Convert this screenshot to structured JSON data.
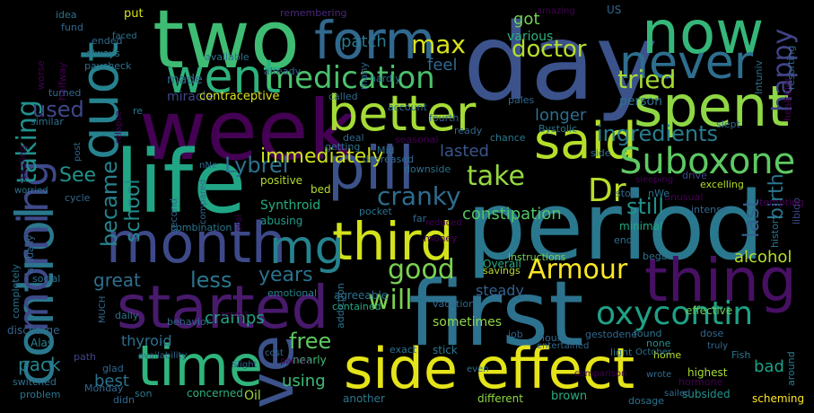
{
  "words": [
    {
      "text": "day",
      "color": "#3b528b"
    },
    {
      "text": "period",
      "color": "#2a788e"
    },
    {
      "text": "week",
      "color": "#440154"
    },
    {
      "text": "first",
      "color": "#2c728e"
    },
    {
      "text": "two",
      "color": "#3fbc73"
    },
    {
      "text": "life",
      "color": "#21a685"
    },
    {
      "text": "side effect",
      "color": "#e5e419"
    },
    {
      "text": "time",
      "color": "#2fb47c"
    },
    {
      "text": "pill",
      "color": "#3b528b"
    },
    {
      "text": "said",
      "color": "#b5de2b"
    },
    {
      "text": "spent",
      "color": "#8fd744"
    },
    {
      "text": "now",
      "color": "#35b779"
    },
    {
      "text": "form",
      "color": "#31688e"
    },
    {
      "text": "thing",
      "color": "#471063"
    },
    {
      "text": "month",
      "color": "#3e4989"
    },
    {
      "text": "started",
      "color": "#481a6c"
    },
    {
      "text": "third",
      "color": "#d2e21b"
    },
    {
      "text": "better",
      "color": "#a5db36"
    },
    {
      "text": "went",
      "color": "#2db27d"
    },
    {
      "text": "quot",
      "color": "#26828e"
    },
    {
      "text": "control",
      "color": "#2a788e"
    },
    {
      "text": "morning",
      "color": "#3e4989"
    },
    {
      "text": "ve",
      "color": "#3b528b"
    },
    {
      "text": "mg",
      "color": "#26828e"
    },
    {
      "text": "never",
      "color": "#2e6e8e"
    },
    {
      "text": "Suboxone",
      "color": "#5ec962"
    },
    {
      "text": "medication",
      "color": "#4ac16d"
    },
    {
      "text": "oxycontin",
      "color": "#1fa187"
    },
    {
      "text": "Armour",
      "color": "#fde725"
    },
    {
      "text": "Dr",
      "color": "#b8de29"
    },
    {
      "text": "good",
      "color": "#7ad151"
    },
    {
      "text": "cranky",
      "color": "#2f6c8e"
    },
    {
      "text": "take",
      "color": "#95d840"
    },
    {
      "text": "tried",
      "color": "#a8db34"
    },
    {
      "text": "doctor",
      "color": "#b5de2b"
    },
    {
      "text": "max",
      "color": "#d8e219"
    },
    {
      "text": "happy",
      "color": "#414487"
    },
    {
      "text": "taking",
      "color": "#21918c"
    },
    {
      "text": "used",
      "color": "#3f4788"
    },
    {
      "text": "See",
      "color": "#20928c"
    },
    {
      "text": "became",
      "color": "#26828e"
    },
    {
      "text": "school",
      "color": "#228c8d"
    },
    {
      "text": "Lybrel",
      "color": "#2c728e"
    },
    {
      "text": "immediately",
      "color": "#d0e11c"
    },
    {
      "text": "ingredients",
      "color": "#287c8e"
    },
    {
      "text": "still",
      "color": "#20928c"
    },
    {
      "text": "lasted",
      "color": "#39558c"
    },
    {
      "text": "constipation",
      "color": "#54c568"
    },
    {
      "text": "last",
      "color": "#34618d"
    },
    {
      "text": "birth",
      "color": "#2a768e"
    },
    {
      "text": "alcohol",
      "color": "#b5de2b"
    },
    {
      "text": "will",
      "color": "#7ad151"
    },
    {
      "text": "free",
      "color": "#5ec962"
    },
    {
      "text": "less",
      "color": "#2a768e"
    },
    {
      "text": "great",
      "color": "#2e6f8e"
    },
    {
      "text": "years",
      "color": "#2c728e"
    },
    {
      "text": "cramps",
      "color": "#20a386"
    },
    {
      "text": "pack",
      "color": "#26828e"
    },
    {
      "text": "using",
      "color": "#3dbc74"
    },
    {
      "text": "steady",
      "color": "#33628d"
    },
    {
      "text": "thyroid",
      "color": "#2d708e"
    },
    {
      "text": "sometimes",
      "color": "#8fd744"
    },
    {
      "text": "best",
      "color": "#2c728e"
    },
    {
      "text": "patch",
      "color": "#29798e"
    },
    {
      "text": "feel",
      "color": "#31688e"
    },
    {
      "text": "got",
      "color": "#75d054"
    },
    {
      "text": "various",
      "color": "#2db27d"
    },
    {
      "text": "longer",
      "color": "#2e6e8e"
    },
    {
      "text": "person",
      "color": "#2c728e"
    },
    {
      "text": "made",
      "color": "#31688e"
    },
    {
      "text": "miracle",
      "color": "#3e4989"
    },
    {
      "text": "contraceptive",
      "color": "#d8e219"
    },
    {
      "text": "Synthroid",
      "color": "#26ad81"
    },
    {
      "text": "positive",
      "color": "#b5de2b"
    },
    {
      "text": "abusing",
      "color": "#1f9e89"
    },
    {
      "text": "combination",
      "color": "#2a768e"
    },
    {
      "text": "minimal",
      "color": "#22a884"
    },
    {
      "text": "Overall",
      "color": "#25ab82"
    },
    {
      "text": "instructions",
      "color": "#7ad151"
    },
    {
      "text": "savings",
      "color": "#b5de2b"
    },
    {
      "text": "agreeable",
      "color": "#2d708e"
    },
    {
      "text": "contained",
      "color": "#22a884"
    },
    {
      "text": "effective",
      "color": "#6ccd5a"
    },
    {
      "text": "Oil",
      "color": "#9fda3a"
    },
    {
      "text": "bad",
      "color": "#1fa187"
    },
    {
      "text": "scheming",
      "color": "#fde725"
    },
    {
      "text": "highest",
      "color": "#a8db34"
    },
    {
      "text": "subsided",
      "color": "#21918c"
    },
    {
      "text": "brown",
      "color": "#27ad81"
    },
    {
      "text": "different",
      "color": "#90d743"
    },
    {
      "text": "another",
      "color": "#2a788e"
    },
    {
      "text": "concerned",
      "color": "#2db27d"
    },
    {
      "text": "problem",
      "color": "#2a768e"
    },
    {
      "text": "son",
      "color": "#2a788e"
    },
    {
      "text": "didn",
      "color": "#31688e"
    },
    {
      "text": "switched",
      "color": "#2c728e"
    },
    {
      "text": "glad",
      "color": "#31688e"
    },
    {
      "text": "path",
      "color": "#414487"
    },
    {
      "text": "Alas",
      "color": "#26828e"
    },
    {
      "text": "discharge",
      "color": "#34618d"
    },
    {
      "text": "daily",
      "color": "#2c728e"
    },
    {
      "text": "emotional",
      "color": "#26828e"
    },
    {
      "text": "behavior",
      "color": "#31688e"
    },
    {
      "text": "nearly",
      "color": "#3fbc73"
    },
    {
      "text": "stick",
      "color": "#29798e"
    },
    {
      "text": "exact",
      "color": "#2c728e"
    },
    {
      "text": "job",
      "color": "#33628d"
    },
    {
      "text": "light",
      "color": "#2a788e"
    },
    {
      "text": "hours",
      "color": "#31688e"
    },
    {
      "text": "found",
      "color": "#2c728e"
    },
    {
      "text": "none",
      "color": "#21918c"
    },
    {
      "text": "dose",
      "color": "#31688e"
    },
    {
      "text": "home",
      "color": "#b5de2b"
    },
    {
      "text": "Fish",
      "color": "#2a788e"
    },
    {
      "text": "dosage",
      "color": "#2c728e"
    },
    {
      "text": "sailed",
      "color": "#31688e"
    },
    {
      "text": "around",
      "color": "#287c8e"
    },
    {
      "text": "hormone",
      "color": "#440154"
    },
    {
      "text": "history",
      "color": "#2c728e"
    },
    {
      "text": "libido",
      "color": "#3e4989"
    },
    {
      "text": "tempting",
      "color": "#440154"
    },
    {
      "text": "intense",
      "color": "#31688e"
    },
    {
      "text": "unusual",
      "color": "#440154"
    },
    {
      "text": "excelling",
      "color": "#b5de2b"
    },
    {
      "text": "drive",
      "color": "#3e4989"
    },
    {
      "text": "healthier",
      "color": "#440154"
    },
    {
      "text": "resorting",
      "color": "#31688e"
    },
    {
      "text": "Intuniv",
      "color": "#2c728e"
    },
    {
      "text": "slept",
      "color": "#31688e"
    },
    {
      "text": "Bystolic",
      "color": "#2a788e"
    },
    {
      "text": "fourth",
      "color": "#31688e"
    },
    {
      "text": "account",
      "color": "#2c728e"
    },
    {
      "text": "called",
      "color": "#31688e"
    },
    {
      "text": "ready",
      "color": "#31688e"
    },
    {
      "text": "chance",
      "color": "#2a788e"
    },
    {
      "text": "downside",
      "color": "#2c728e"
    },
    {
      "text": "decreased",
      "color": "#31688e"
    },
    {
      "text": "getting",
      "color": "#2c728e"
    },
    {
      "text": "deal",
      "color": "#31688e"
    },
    {
      "text": "seasonal",
      "color": "#440154"
    },
    {
      "text": "pales",
      "color": "#31688e"
    },
    {
      "text": "Mid",
      "color": "#2c728e"
    },
    {
      "text": "amazing",
      "color": "#440154"
    },
    {
      "text": "US",
      "color": "#31688e"
    },
    {
      "text": "many",
      "color": "#31688e"
    },
    {
      "text": "hardly",
      "color": "#2c728e"
    },
    {
      "text": "already",
      "color": "#31688e"
    },
    {
      "text": "available",
      "color": "#2c728e"
    },
    {
      "text": "remembering",
      "color": "#482878"
    },
    {
      "text": "put",
      "color": "#d8e219"
    },
    {
      "text": "idea",
      "color": "#2c728e"
    },
    {
      "text": "fund",
      "color": "#31688e"
    },
    {
      "text": "faced",
      "color": "#2c728e"
    },
    {
      "text": "always",
      "color": "#2a788e"
    },
    {
      "text": "ended",
      "color": "#31688e"
    },
    {
      "text": "paycheck",
      "color": "#2c728e"
    },
    {
      "text": "halfway",
      "color": "#440154"
    },
    {
      "text": "worse",
      "color": "#440154"
    },
    {
      "text": "turned",
      "color": "#31688e"
    },
    {
      "text": "similar",
      "color": "#2c728e"
    },
    {
      "text": "re",
      "color": "#2a788e"
    },
    {
      "text": "relapse",
      "color": "#440154"
    },
    {
      "text": "post",
      "color": "#31688e"
    },
    {
      "text": "stealing",
      "color": "#440154"
    },
    {
      "text": "worried",
      "color": "#2c728e"
    },
    {
      "text": "cycle",
      "color": "#31688e"
    },
    {
      "text": "nNe",
      "color": "#2c728e"
    },
    {
      "text": "second",
      "color": "#31688e"
    },
    {
      "text": "compared",
      "color": "#31688e"
    },
    {
      "text": "oral",
      "color": "#440154"
    },
    {
      "text": "bed",
      "color": "#b5de2b"
    },
    {
      "text": "pocket",
      "color": "#2c728e"
    },
    {
      "text": "far",
      "color": "#31688e"
    },
    {
      "text": "reduced",
      "color": "#440154"
    },
    {
      "text": "end",
      "color": "#2c728e"
    },
    {
      "text": "began",
      "color": "#2c728e"
    },
    {
      "text": "stop",
      "color": "#31688e"
    },
    {
      "text": "nWe",
      "color": "#2c728e"
    },
    {
      "text": "sleeping",
      "color": "#440154"
    },
    {
      "text": "side",
      "color": "#31688e"
    },
    {
      "text": "Monday",
      "color": "#31688e"
    },
    {
      "text": "completely",
      "color": "#2c728e"
    },
    {
      "text": "actually",
      "color": "#31688e"
    },
    {
      "text": "social",
      "color": "#2c728e"
    },
    {
      "text": "MUCH",
      "color": "#31688e"
    },
    {
      "text": "money",
      "color": "#440154"
    },
    {
      "text": "vacation",
      "color": "#31688e"
    },
    {
      "text": "addiction",
      "color": "#2c728e"
    },
    {
      "text": "entertained",
      "color": "#31688e"
    },
    {
      "text": "gestodene",
      "color": "#31688e"
    },
    {
      "text": "report",
      "color": "#440154"
    },
    {
      "text": "availability",
      "color": "#31688e"
    },
    {
      "text": "Slight",
      "color": "#31688e"
    },
    {
      "text": "parties",
      "color": "#440154"
    },
    {
      "text": "cost",
      "color": "#31688e"
    },
    {
      "text": "October",
      "color": "#2c728e"
    },
    {
      "text": "truly",
      "color": "#31688e"
    },
    {
      "text": "wrote",
      "color": "#31688e"
    },
    {
      "text": "comparison",
      "color": "#440154"
    },
    {
      "text": "even",
      "color": "#2c728e"
    }
  ]
}
